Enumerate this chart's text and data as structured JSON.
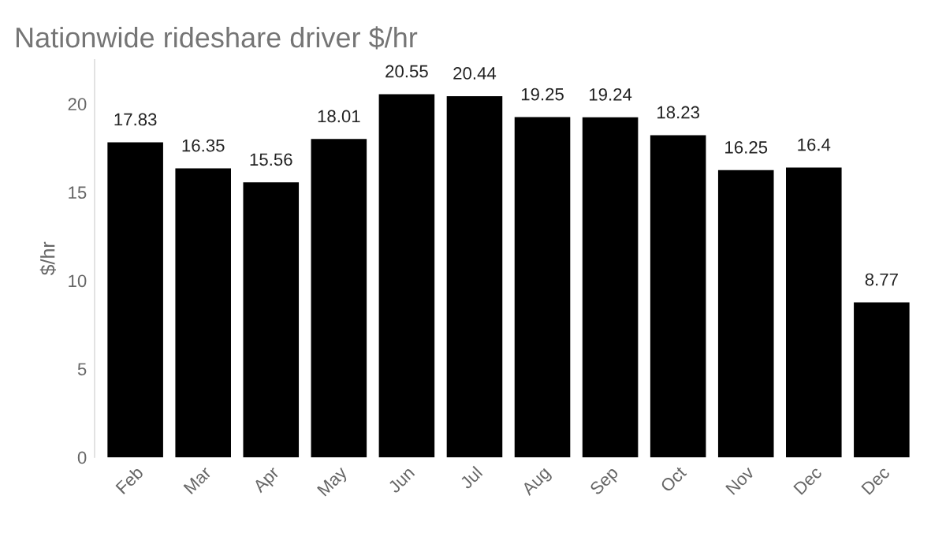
{
  "chart_data": {
    "type": "bar",
    "title": "Nationwide rideshare driver $/hr",
    "ylabel": "$/hr",
    "categories": [
      "Feb",
      "Mar",
      "Apr",
      "May",
      "Jun",
      "Jul",
      "Aug",
      "Sep",
      "Oct",
      "Nov",
      "Dec",
      "Dec"
    ],
    "values": [
      17.83,
      16.35,
      15.56,
      18.01,
      20.55,
      20.44,
      19.25,
      19.24,
      18.23,
      16.25,
      16.4,
      8.77
    ],
    "color": "#000000",
    "ylim": [
      0,
      22.5
    ],
    "yticks": [
      0,
      5,
      10,
      15,
      20
    ],
    "grid": false,
    "data_labels": true
  }
}
